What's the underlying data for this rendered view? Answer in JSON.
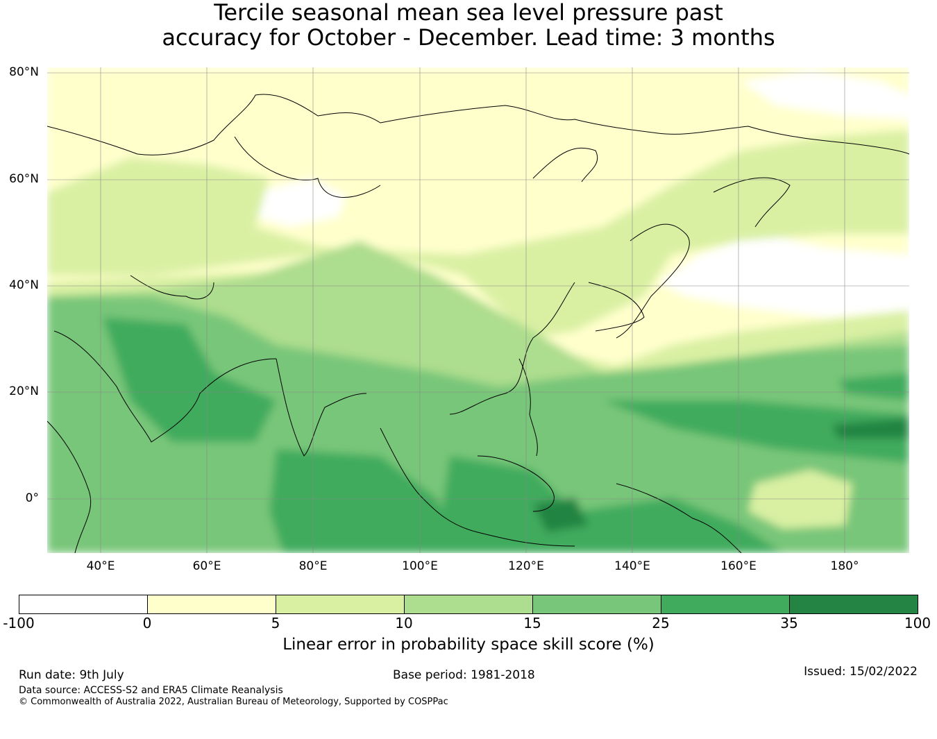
{
  "title": {
    "line1": "Tercile seasonal mean sea level pressure past",
    "line2": "accuracy for October - December. Lead time: 3 months"
  },
  "map": {
    "lat_labels": [
      "80°N",
      "60°N",
      "40°N",
      "20°N",
      "0°"
    ],
    "lon_labels": [
      "40°E",
      "60°E",
      "80°E",
      "100°E",
      "120°E",
      "140°E",
      "160°E",
      "180°"
    ],
    "lat_range": [
      -10,
      80
    ],
    "lon_range": [
      30,
      192
    ],
    "gridlines": true
  },
  "legend": {
    "ticks": [
      "-100",
      "0",
      "5",
      "10",
      "15",
      "25",
      "35",
      "100"
    ],
    "colors": [
      "#ffffff",
      "#ffffcc",
      "#d9f0a3",
      "#addd8e",
      "#78c679",
      "#41ab5d",
      "#238443"
    ],
    "label": "Linear error in probability space skill score (%)"
  },
  "footer": {
    "run_date": "Run date: 9th July",
    "base_period": "Base period: 1981-2018",
    "issued": "Issued: 15/02/2022",
    "data_source": "Data source: ACCESS-S2 and ERA5 Climate Reanalysis",
    "copyright": "© Commonwealth of Australia 2022, Australian Bureau of Meteorology, Supported by COSPPac"
  }
}
